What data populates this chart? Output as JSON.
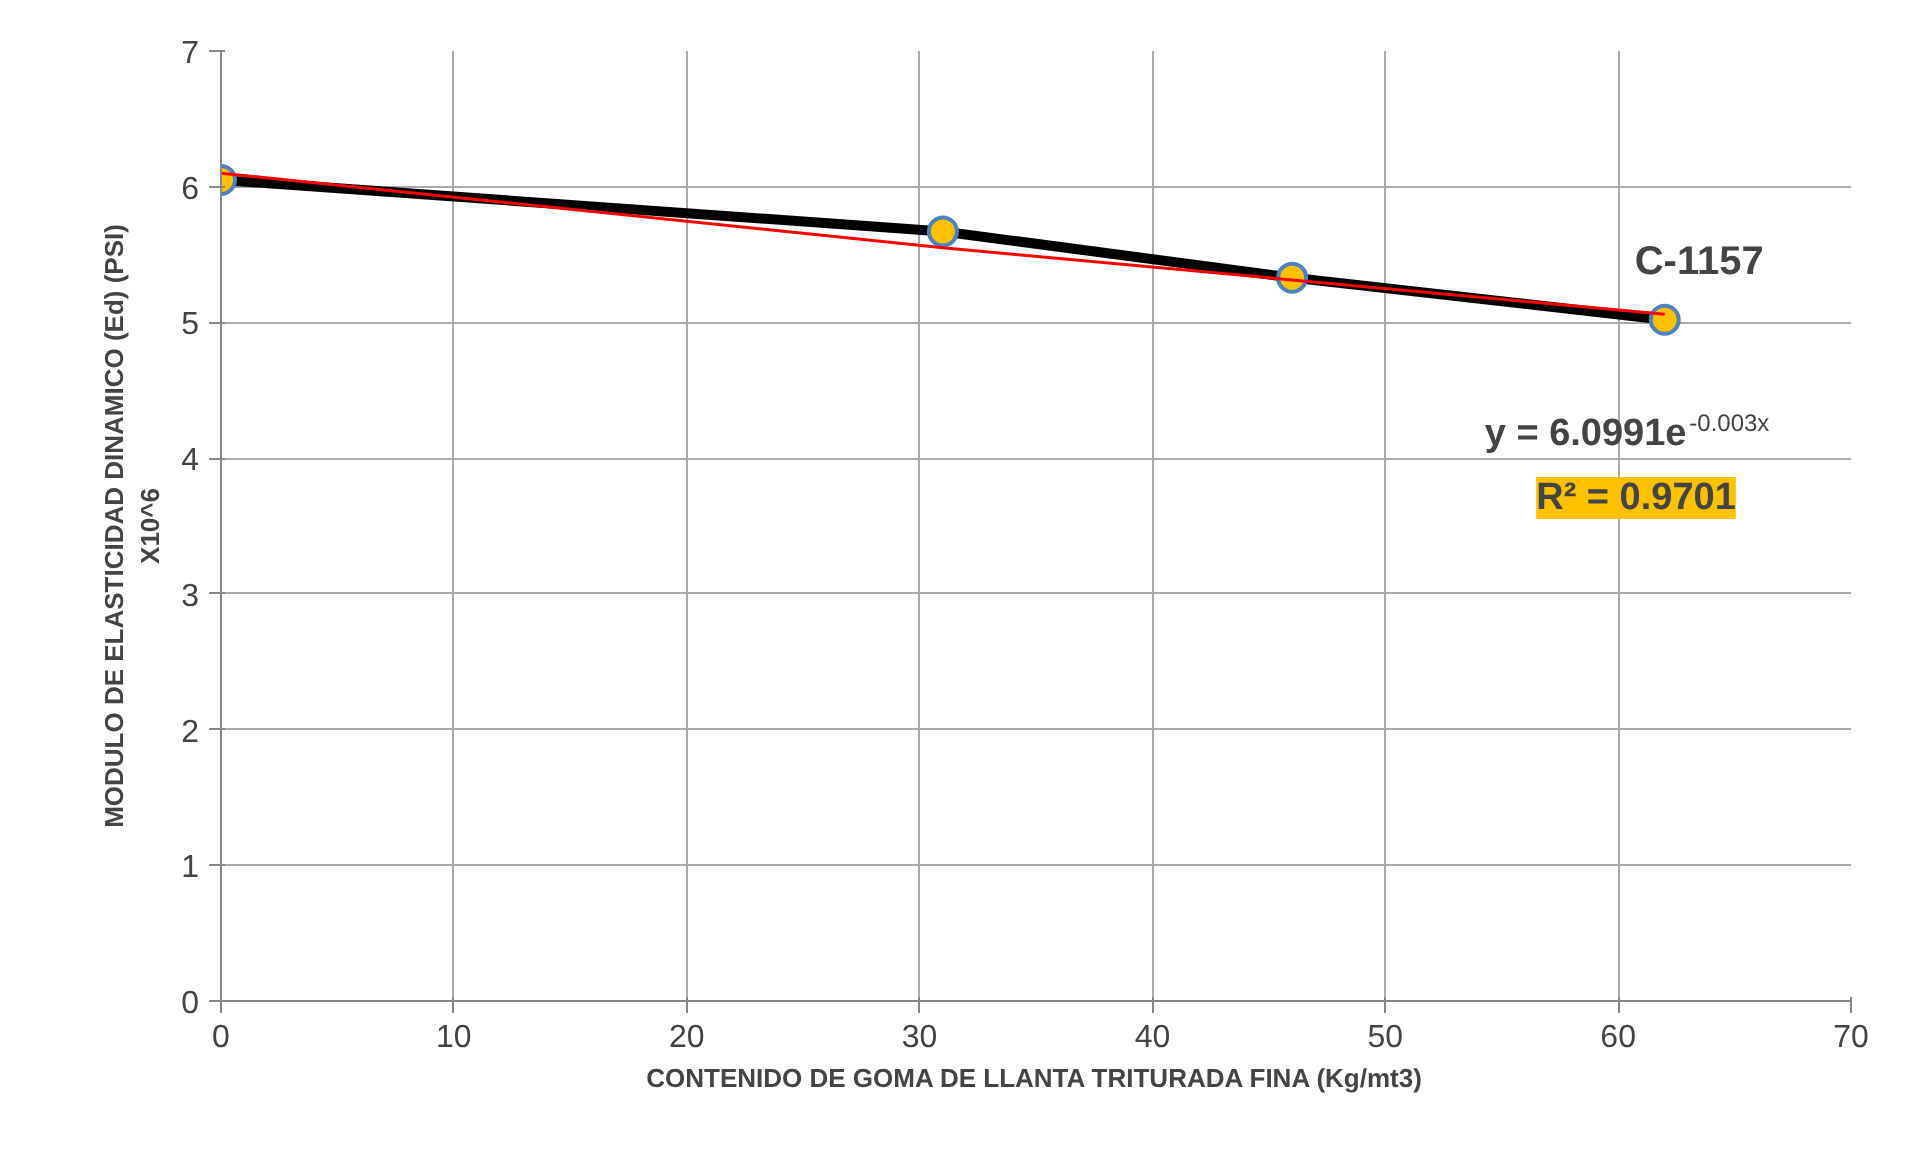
{
  "chart_data": {
    "type": "line",
    "xlabel": "CONTENIDO DE GOMA DE LLANTA TRITURADA FINA (Kg/mt3)",
    "ylabel": "MODULO DE ELASTICIDAD DINAMICO (Ed) (PSI)\nX10^6",
    "x": [
      0,
      31,
      46,
      62
    ],
    "series": [
      {
        "name": "C-1157",
        "color": "#000000",
        "values": [
          6.05,
          5.67,
          5.33,
          5.02
        ],
        "marker": "circle"
      },
      {
        "type": "line",
        "color": "#ff0000",
        "x": [
          0,
          31,
          62
        ],
        "values": [
          6.1,
          5.55,
          5.06
        ],
        "marker": "none"
      }
    ],
    "annotations": [
      "y = 6.0991e$^{-0.003x}$",
      "R² = 0.9701"
    ],
    "xlim": [
      0,
      70
    ],
    "xticks": [
      0,
      10,
      20,
      30,
      40,
      50,
      60,
      70
    ],
    "ylim": [
      0,
      7
    ],
    "yticks": [
      0,
      1,
      2,
      3,
      4,
      5,
      6,
      7
    ],
    "grid": true,
    "legend": false
  }
}
